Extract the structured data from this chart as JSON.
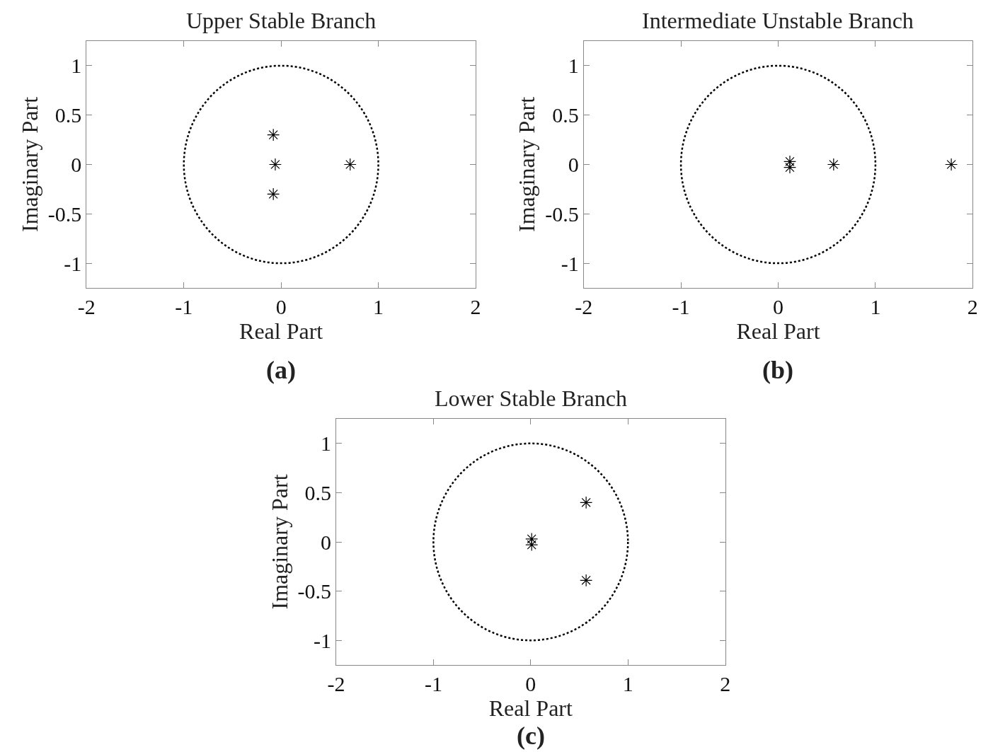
{
  "chart_data": [
    {
      "type": "scatter",
      "title": "Upper Stable Branch",
      "xlabel": "Real Part",
      "ylabel": "Imaginary Part",
      "annotations": [
        "(a)"
      ],
      "xlim": [
        -2,
        2
      ],
      "ylim": [
        -1.25,
        1.25
      ],
      "xticks": [
        -2,
        -1,
        0,
        1,
        2
      ],
      "yticks": [
        -1,
        -0.5,
        0,
        0.5,
        1
      ],
      "grid": false,
      "marker": "cross",
      "series": [
        {
          "color": "#000000",
          "x": [
            -0.08,
            -0.06,
            -0.08,
            0.71
          ],
          "values": [
            0.3,
            0,
            -0.3,
            0
          ]
        }
      ]
    },
    {
      "type": "scatter",
      "title": "Intermediate Unstable Branch",
      "xlabel": "Real Part",
      "ylabel": "Imaginary Part",
      "annotations": [
        "(b)"
      ],
      "xlim": [
        -2,
        2
      ],
      "ylim": [
        -1.25,
        1.25
      ],
      "xticks": [
        -2,
        -1,
        0,
        1,
        2
      ],
      "yticks": [
        -1,
        -0.5,
        0,
        0.5,
        1
      ],
      "grid": false,
      "marker": "cross",
      "series": [
        {
          "color": "#000000",
          "x": [
            0.12,
            0.12,
            0.57,
            1.78
          ],
          "values": [
            0.03,
            -0.03,
            0,
            0
          ]
        }
      ]
    },
    {
      "type": "scatter",
      "title": "Lower Stable Branch",
      "xlabel": "Real Part",
      "ylabel": "Imaginary Part",
      "annotations": [
        "(c)"
      ],
      "xlim": [
        -2,
        2
      ],
      "ylim": [
        -1.25,
        1.25
      ],
      "xticks": [
        -2,
        -1,
        0,
        1,
        2
      ],
      "yticks": [
        -1,
        -0.5,
        0,
        0.5,
        1
      ],
      "grid": false,
      "marker": "cross",
      "series": [
        {
          "color": "#000000",
          "x": [
            0.01,
            0.01,
            0.57,
            0.57
          ],
          "values": [
            0.03,
            -0.03,
            0.4,
            -0.39
          ]
        }
      ]
    }
  ]
}
